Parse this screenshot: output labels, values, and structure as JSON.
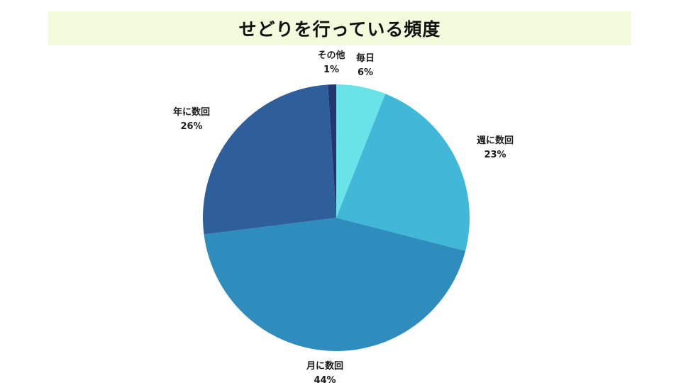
{
  "chart_data": {
    "type": "pie",
    "title": "せどりを行っている頻度",
    "slices": [
      {
        "label": "毎日",
        "value": 6,
        "value_label": "6%",
        "color": "#6ae3e8"
      },
      {
        "label": "週に数回",
        "value": 23,
        "value_label": "23%",
        "color": "#42b8d8"
      },
      {
        "label": "月に数回",
        "value": 44,
        "value_label": "44%",
        "color": "#2e8dbd"
      },
      {
        "label": "年に数回",
        "value": 26,
        "value_label": "26%",
        "color": "#2e5f9a"
      },
      {
        "label": "その他",
        "value": 1,
        "value_label": "1%",
        "color": "#233670"
      }
    ],
    "start_angle": "12 o'clock",
    "direction": "clockwise",
    "legend": "none"
  }
}
